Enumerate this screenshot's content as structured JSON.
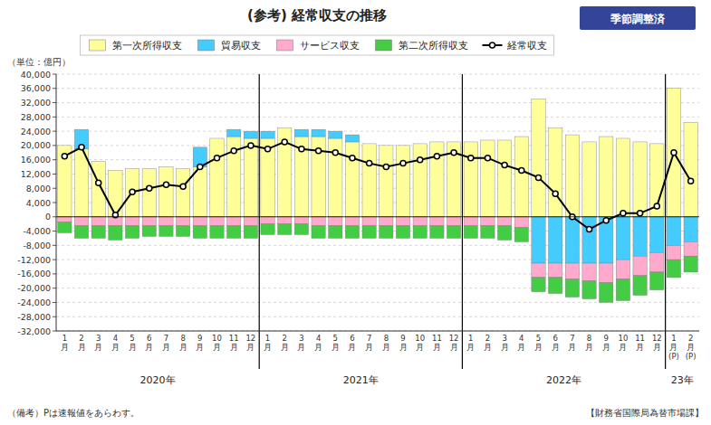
{
  "chart_data": {
    "type": "bar",
    "stacked": true,
    "title": "(参考) 経常収支の推移",
    "subtitle": "季節調整済",
    "y_label": "（単位：億円）",
    "annotations": [
      "2020年",
      "2021年",
      "2022年",
      "23年"
    ],
    "note": "（備考）Pは速報値をあらわす。",
    "source": "【財務省国際局為替市場課】",
    "grid": true,
    "legend": "top",
    "categories": [
      "1\n月",
      "2\n月",
      "3\n月",
      "4\n月",
      "5\n月",
      "6\n月",
      "7\n月",
      "8\n月",
      "9\n月",
      "10\n月",
      "11\n月",
      "12\n月",
      "1\n月",
      "2\n月",
      "3\n月",
      "4\n月",
      "5\n月",
      "6\n月",
      "7\n月",
      "8\n月",
      "9\n月",
      "10\n月",
      "11\n月",
      "12\n月",
      "1\n月",
      "2\n月",
      "3\n月",
      "4\n月",
      "5\n月",
      "6\n月",
      "7\n月",
      "8\n月",
      "9\n月",
      "10\n月",
      "11\n月",
      "12\n月",
      "1\n月\n(P)",
      "2\n月\n(P)"
    ],
    "ylim": [
      -32000,
      40000
    ],
    "yticks": [
      {
        "value": -32000,
        "label": "-32,000"
      },
      {
        "value": -28000,
        "label": "-28,000"
      },
      {
        "value": -24000,
        "label": "-24,000"
      },
      {
        "value": -20000,
        "label": "-20,000"
      },
      {
        "value": -16000,
        "label": "-16,000"
      },
      {
        "value": -12000,
        "label": "-12,000"
      },
      {
        "value": -8000,
        "label": "-8,000"
      },
      {
        "value": -4000,
        "label": "-4,000"
      },
      0,
      {
        "value": 4000,
        "label": "4,000"
      },
      {
        "value": 8000,
        "label": "8,000"
      },
      {
        "value": 12000,
        "label": "12,000"
      },
      {
        "value": 16000,
        "label": "16,000"
      },
      {
        "value": 20000,
        "label": "20,000"
      },
      {
        "value": 24000,
        "label": "24,000"
      },
      {
        "value": 28000,
        "label": "28,000"
      },
      {
        "value": 32000,
        "label": "32,000"
      },
      {
        "value": 36000,
        "label": "36,000"
      },
      {
        "value": 40000,
        "label": "40,000"
      }
    ],
    "series": [
      {
        "name": "第一次所得収支",
        "type": "bar",
        "color": "#ffff99",
        "values": [
          20000,
          19000,
          15500,
          13000,
          13500,
          13500,
          14000,
          13500,
          14000,
          22000,
          22500,
          22000,
          22000,
          25000,
          22500,
          22500,
          22000,
          21000,
          20500,
          20000,
          20000,
          20500,
          21000,
          21000,
          21000,
          21500,
          21500,
          22500,
          33000,
          25000,
          23000,
          21000,
          22500,
          22000,
          21000,
          20500,
          36000,
          26500
        ]
      },
      {
        "name": "貿易収支",
        "type": "bar",
        "color": "#44ccff",
        "values": [
          0,
          5500,
          0,
          0,
          0,
          0,
          0,
          0,
          5500,
          0,
          2000,
          2000,
          2000,
          0,
          2000,
          2000,
          2000,
          2000,
          0,
          0,
          0,
          0,
          0,
          0,
          0,
          0,
          0,
          0,
          -13000,
          -13000,
          -13000,
          -13000,
          -13000,
          -12000,
          -11000,
          -10000,
          -8000,
          -7000
        ]
      },
      {
        "name": "サービス収支",
        "type": "bar",
        "color": "#ffaacc",
        "values": [
          -1500,
          -2500,
          -2500,
          -2500,
          -2500,
          -2500,
          -2500,
          -2500,
          -2500,
          -2500,
          -2500,
          -2500,
          -2000,
          -2000,
          -2000,
          -2500,
          -2500,
          -2500,
          -2500,
          -2500,
          -2500,
          -2500,
          -2500,
          -2500,
          -2500,
          -2500,
          -2500,
          -3000,
          -4000,
          -4000,
          -4500,
          -5000,
          -5500,
          -5500,
          -5500,
          -5500,
          -4000,
          -4000
        ]
      },
      {
        "name": "第二次所得収支",
        "type": "bar",
        "color": "#44cc44",
        "values": [
          -3000,
          -3500,
          -3500,
          -4000,
          -3500,
          -3000,
          -3000,
          -3000,
          -3500,
          -3500,
          -3500,
          -3500,
          -3000,
          -3000,
          -3000,
          -3500,
          -3500,
          -3500,
          -3500,
          -3500,
          -3500,
          -3500,
          -3500,
          -3500,
          -3500,
          -3500,
          -4000,
          -4000,
          -4000,
          -4500,
          -5000,
          -5000,
          -5500,
          -6000,
          -5500,
          -5000,
          -5000,
          -4500
        ]
      },
      {
        "name": "経常収支",
        "type": "line",
        "color": "#000000",
        "marker": "circle",
        "values": [
          17000,
          19500,
          9500,
          500,
          7000,
          8000,
          9000,
          8500,
          14000,
          16500,
          18500,
          20000,
          19000,
          21000,
          19000,
          18500,
          18000,
          16500,
          15000,
          14000,
          15000,
          16000,
          17000,
          18000,
          16500,
          16500,
          14500,
          13000,
          11000,
          6500,
          0,
          -3500,
          -1000,
          1000,
          1000,
          3000,
          18000,
          10000
        ]
      }
    ]
  }
}
